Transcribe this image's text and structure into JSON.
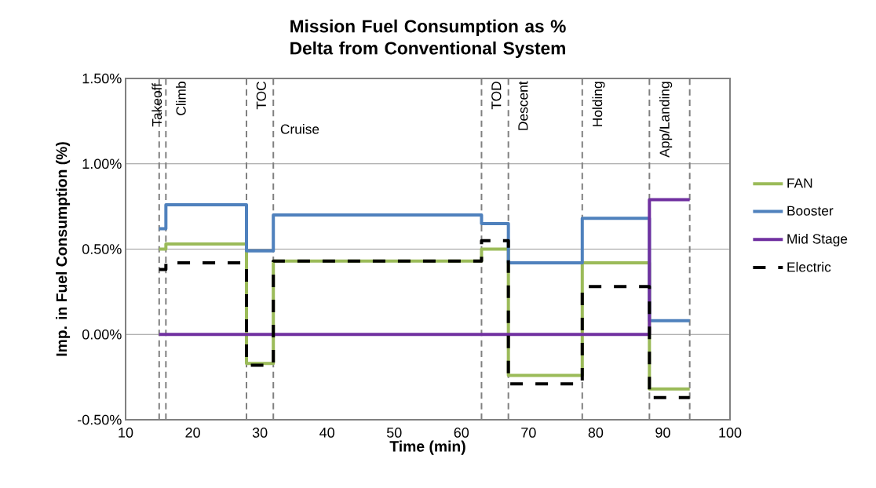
{
  "chart_data": {
    "type": "step",
    "title": "Mission Fuel Consumption as % Delta from Conventional System",
    "xlabel": "Time (min)",
    "ylabel": "Imp. in Fuel Consumption (%)",
    "xlim": [
      10,
      100
    ],
    "xticks": [
      10,
      20,
      30,
      40,
      50,
      60,
      70,
      80,
      90,
      100
    ],
    "ylim": [
      -0.5,
      1.5
    ],
    "yticks": [
      {
        "value": -0.5,
        "label": "-0.50%"
      },
      {
        "value": 0,
        "label": "0.00%"
      },
      {
        "value": 0.5,
        "label": "0.50%"
      },
      {
        "value": 1.0,
        "label": "1.00%"
      },
      {
        "value": 1.5,
        "label": "1.50%"
      }
    ],
    "grid": "y",
    "legend": "right",
    "series": [
      {
        "name": "FAN",
        "color": "#9bbb59",
        "line_style": "solid",
        "x": [
          15,
          16,
          28,
          32,
          63,
          67,
          78,
          88,
          94
        ],
        "values": [
          0.5,
          0.53,
          -0.17,
          0.43,
          0.5,
          -0.24,
          0.42,
          -0.32,
          -0.32
        ]
      },
      {
        "name": "Booster",
        "color": "#4f81bd",
        "line_style": "solid",
        "x": [
          15,
          16,
          28,
          32,
          63,
          67,
          78,
          88,
          94
        ],
        "values": [
          0.62,
          0.76,
          0.49,
          0.7,
          0.65,
          0.42,
          0.68,
          0.08,
          0.08
        ]
      },
      {
        "name": "Mid Stage",
        "color": "#7030a0",
        "line_style": "solid",
        "x": [
          15,
          88,
          94
        ],
        "values": [
          0,
          0.79,
          0.79
        ]
      },
      {
        "name": "Electric",
        "color": "#000000",
        "line_style": "dashed",
        "x": [
          15,
          16,
          28,
          32,
          63,
          67,
          78,
          88,
          94
        ],
        "values": [
          0.38,
          0.42,
          -0.18,
          0.43,
          0.55,
          -0.29,
          0.28,
          -0.37,
          -0.37
        ]
      }
    ],
    "ref_lines": [
      {
        "axis": "x",
        "value": 15,
        "label": "Takeoff",
        "color": "#808080",
        "line_style": "dashed"
      },
      {
        "axis": "x",
        "value": 16,
        "label": "Climb",
        "color": "#808080",
        "line_style": "dashed"
      },
      {
        "axis": "x",
        "value": 28,
        "label": "TOC",
        "color": "#808080",
        "line_style": "dashed"
      },
      {
        "axis": "x",
        "value": 32,
        "label": "Cruise",
        "color": "#808080",
        "line_style": "dashed"
      },
      {
        "axis": "x",
        "value": 63,
        "label": "TOD",
        "color": "#808080",
        "line_style": "dashed"
      },
      {
        "axis": "x",
        "value": 67,
        "label": "Descent",
        "color": "#808080",
        "line_style": "dashed"
      },
      {
        "axis": "x",
        "value": 78,
        "label": "Holding",
        "color": "#808080",
        "line_style": "dashed"
      },
      {
        "axis": "x",
        "value": 88,
        "label": "App/Landing",
        "color": "#808080",
        "line_style": "dashed"
      },
      {
        "axis": "x",
        "value": 94,
        "color": "#808080",
        "line_style": "dashed"
      }
    ]
  }
}
